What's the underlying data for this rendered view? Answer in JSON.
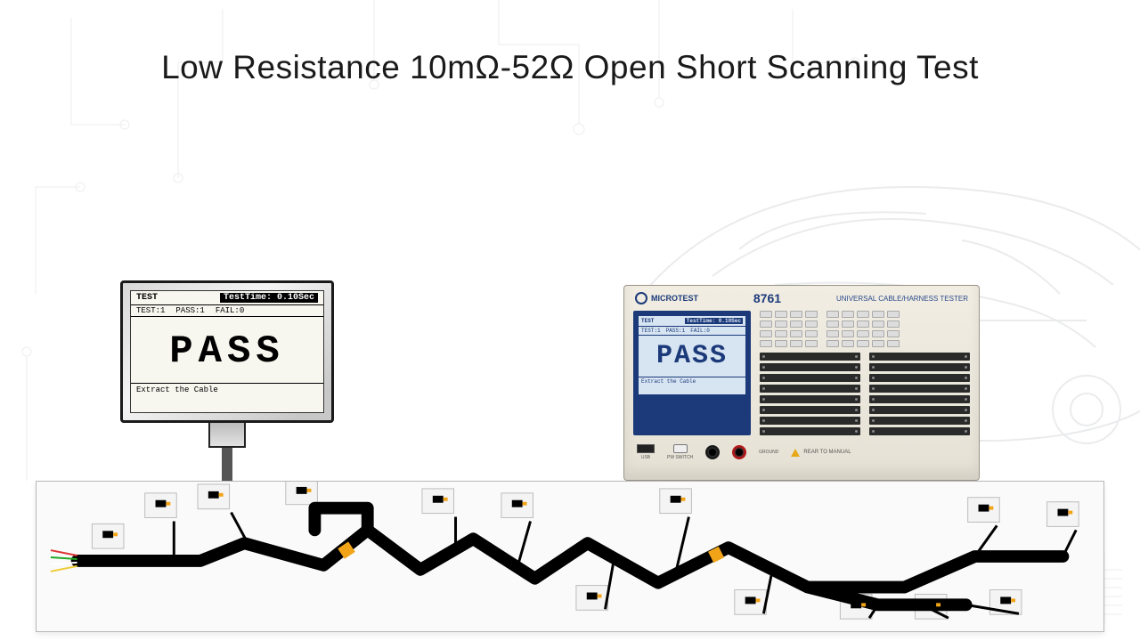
{
  "title": "Low Resistance 10mΩ-52Ω Open Short Scanning Test",
  "monitor": {
    "test_label": "TEST",
    "testtime_label": "TestTime:",
    "testtime_value": "0.10Sec",
    "stats": {
      "test": "TEST:1",
      "pass": "PASS:1",
      "fail": "FAIL:0"
    },
    "result": "PASS",
    "footer": "Extract the Cable"
  },
  "tester": {
    "brand": "MICROTEST",
    "model": "8761",
    "subtitle": "UNIVERSAL CABLE/HARNESS TESTER",
    "lcd": {
      "test_label": "TEST",
      "testtime_label": "TestTime:",
      "testtime_value": "0.10Sec",
      "stats": {
        "test": "TEST:1",
        "pass": "PASS:1",
        "fail": "FAIL:0"
      },
      "result": "PASS",
      "footer": "Extract the Cable"
    },
    "port_labels": {
      "usb": "USB",
      "pwr": "PW SWITCH",
      "ground": "GROUND"
    },
    "warning": "REAR TO MANUAL",
    "jack_colors": {
      "black": "#1a1a1a",
      "red": "#b31818"
    },
    "slot_count_per_col": 8,
    "keypad_a_count": 16,
    "keypad_b_count": 20
  },
  "colors": {
    "title": "#1a1a1a",
    "tester_blue": "#1c3a7a",
    "lcd_bg": "#d7e4f2",
    "harness_main": "#000000",
    "harness_accent": "#f2a418",
    "board_bg": "#fafafa",
    "board_border": "#b8b8b8"
  },
  "harness": {
    "connector_count": 14
  }
}
